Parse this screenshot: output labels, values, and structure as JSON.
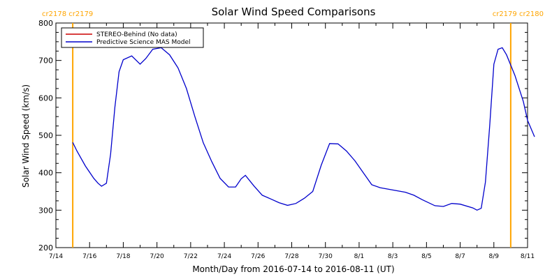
{
  "chart_data": {
    "type": "line",
    "title": "Solar Wind Speed Comparisons",
    "xlabel": "Month/Day from 2016-07-14 to 2016-08-11 (UT)",
    "ylabel": "Solar Wind Speed (km/s)",
    "xlim": [
      "2016-07-14",
      "2016-08-11"
    ],
    "ylim": [
      200,
      800
    ],
    "yticks": [
      200,
      300,
      400,
      500,
      600,
      700,
      800
    ],
    "xticks": [
      {
        "date": "2016-07-14",
        "label": "7/14"
      },
      {
        "date": "2016-07-16",
        "label": "7/16"
      },
      {
        "date": "2016-07-18",
        "label": "7/18"
      },
      {
        "date": "2016-07-20",
        "label": "7/20"
      },
      {
        "date": "2016-07-22",
        "label": "7/22"
      },
      {
        "date": "2016-07-24",
        "label": "7/24"
      },
      {
        "date": "2016-07-26",
        "label": "7/26"
      },
      {
        "date": "2016-07-28",
        "label": "7/28"
      },
      {
        "date": "2016-07-30",
        "label": "7/30"
      },
      {
        "date": "2016-08-01",
        "label": "8/1"
      },
      {
        "date": "2016-08-03",
        "label": "8/3"
      },
      {
        "date": "2016-08-05",
        "label": "8/5"
      },
      {
        "date": "2016-08-07",
        "label": "8/7"
      },
      {
        "date": "2016-08-09",
        "label": "8/9"
      },
      {
        "date": "2016-08-11",
        "label": "8/11"
      }
    ],
    "grid": false,
    "legend_position": "top-left",
    "carrington_markers": [
      {
        "date": "2016-07-15 00:00",
        "label": "cr2178 cr2179",
        "color": "#ffa500"
      },
      {
        "date": "2016-08-10 00:00",
        "label": "cr2179 cr2180",
        "color": "#ffa500"
      }
    ],
    "series": [
      {
        "name": "STEREO-Behind (No data)",
        "color": "#cc0000",
        "points": []
      },
      {
        "name": "Predictive Science MAS Model",
        "color": "#0000cc",
        "points": [
          [
            "2016-07-15 00:00",
            481
          ],
          [
            "2016-07-15 06:00",
            458
          ],
          [
            "2016-07-15 18:00",
            418
          ],
          [
            "2016-07-16 06:00",
            385
          ],
          [
            "2016-07-16 12:00",
            372
          ],
          [
            "2016-07-16 17:00",
            364
          ],
          [
            "2016-07-17 00:00",
            372
          ],
          [
            "2016-07-17 06:00",
            450
          ],
          [
            "2016-07-17 12:00",
            575
          ],
          [
            "2016-07-17 18:00",
            670
          ],
          [
            "2016-07-18 00:00",
            702
          ],
          [
            "2016-07-18 12:00",
            712
          ],
          [
            "2016-07-19 00:00",
            690
          ],
          [
            "2016-07-19 08:00",
            705
          ],
          [
            "2016-07-19 18:00",
            730
          ],
          [
            "2016-07-20 06:00",
            734
          ],
          [
            "2016-07-20 18:00",
            715
          ],
          [
            "2016-07-21 06:00",
            680
          ],
          [
            "2016-07-21 18:00",
            625
          ],
          [
            "2016-07-22 06:00",
            550
          ],
          [
            "2016-07-22 18:00",
            480
          ],
          [
            "2016-07-23 06:00",
            430
          ],
          [
            "2016-07-23 18:00",
            385
          ],
          [
            "2016-07-24 06:00",
            362
          ],
          [
            "2016-07-24 16:00",
            362
          ],
          [
            "2016-07-25 00:00",
            384
          ],
          [
            "2016-07-25 06:00",
            393
          ],
          [
            "2016-07-25 18:00",
            365
          ],
          [
            "2016-07-26 06:00",
            340
          ],
          [
            "2016-07-26 18:00",
            330
          ],
          [
            "2016-07-27 06:00",
            320
          ],
          [
            "2016-07-27 18:00",
            313
          ],
          [
            "2016-07-28 06:00",
            318
          ],
          [
            "2016-07-28 18:00",
            332
          ],
          [
            "2016-07-29 06:00",
            350
          ],
          [
            "2016-07-29 18:00",
            420
          ],
          [
            "2016-07-30 06:00",
            478
          ],
          [
            "2016-07-30 18:00",
            477
          ],
          [
            "2016-07-31 06:00",
            458
          ],
          [
            "2016-07-31 18:00",
            432
          ],
          [
            "2016-08-01 06:00",
            400
          ],
          [
            "2016-08-01 18:00",
            368
          ],
          [
            "2016-08-02 06:00",
            360
          ],
          [
            "2016-08-03 00:00",
            354
          ],
          [
            "2016-08-03 18:00",
            348
          ],
          [
            "2016-08-04 06:00",
            340
          ],
          [
            "2016-08-04 18:00",
            328
          ],
          [
            "2016-08-05 12:00",
            312
          ],
          [
            "2016-08-06 00:00",
            310
          ],
          [
            "2016-08-06 12:00",
            318
          ],
          [
            "2016-08-07 00:00",
            316
          ],
          [
            "2016-08-07 18:00",
            306
          ],
          [
            "2016-08-08 00:00",
            300
          ],
          [
            "2016-08-08 06:00",
            305
          ],
          [
            "2016-08-08 12:00",
            375
          ],
          [
            "2016-08-08 18:00",
            525
          ],
          [
            "2016-08-09 00:00",
            690
          ],
          [
            "2016-08-09 06:00",
            730
          ],
          [
            "2016-08-09 12:00",
            734
          ],
          [
            "2016-08-09 18:00",
            715
          ],
          [
            "2016-08-10 06:00",
            660
          ],
          [
            "2016-08-10 18:00",
            590
          ],
          [
            "2016-08-11 00:00",
            540
          ],
          [
            "2016-08-11 10:00",
            496
          ]
        ]
      }
    ]
  }
}
